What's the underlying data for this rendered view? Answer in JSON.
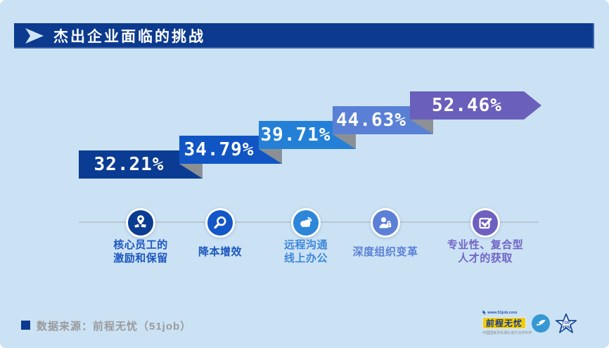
{
  "header": {
    "title": "杰出企业面临的挑战"
  },
  "colors": {
    "background": "#cbe2f5",
    "title_bar": "#0c3a8e",
    "fold_gray": "#8b9095",
    "axis_line": "#b9c7d3",
    "footer_gray": "#9a9a9a",
    "logo_yellow": "#f0cd0a"
  },
  "chart_data": {
    "type": "bar",
    "style": "stepped-ribbon-ascending",
    "title": "杰出企业面临的挑战",
    "categories": [
      "核心员工的激励和保留",
      "降本增效",
      "远程沟通线上办公",
      "深度组织变革",
      "专业性、复合型人才的获取"
    ],
    "values": [
      32.21,
      34.79,
      39.71,
      44.63,
      52.46
    ],
    "value_labels": [
      "32.21%",
      "34.79%",
      "39.71%",
      "44.63%",
      "52.46%"
    ],
    "series_colors": [
      "#0b3c93",
      "#1155c5",
      "#2480d6",
      "#5a80d6",
      "#6a5fba"
    ],
    "ylim": [
      0,
      100
    ],
    "legend": "none",
    "grid": "off"
  },
  "milestones": [
    {
      "icon": "map-pin-map-icon",
      "label_lines": [
        "核心员工的",
        "激励和保留"
      ],
      "circle_color": "#0b3c93",
      "label_color": "#1c56bf"
    },
    {
      "icon": "magnifier-icon",
      "label_lines": [
        "降本增效"
      ],
      "circle_color": "#1356c8",
      "label_color": "#1c56bf"
    },
    {
      "icon": "cloud-signal-icon",
      "label_lines": [
        "远程沟通",
        "线上办公"
      ],
      "circle_color": "#2e86d9",
      "label_color": "#3e86d9"
    },
    {
      "icon": "user-lock-icon",
      "label_lines": [
        "深度组织变革"
      ],
      "circle_color": "#5b80d6",
      "label_color": "#5b80d6"
    },
    {
      "icon": "check-square-icon",
      "label_lines": [
        "专业性、复合型",
        "人才的获取"
      ],
      "circle_color": "#6e60c0",
      "label_color": "#7164c6"
    }
  ],
  "footer": {
    "source_text": "数据来源：前程无忧（51job）"
  },
  "logos": {
    "job51": {
      "url_text": "www.51job.com",
      "brand_text": "前程无忧",
      "partner_text": "中国国家羽毛球队官方合作伙伴"
    },
    "badge": {
      "icon": "globe-swoosh-badge-icon"
    },
    "tophrm": {
      "line1": "TOP",
      "line2": "HRM"
    }
  }
}
